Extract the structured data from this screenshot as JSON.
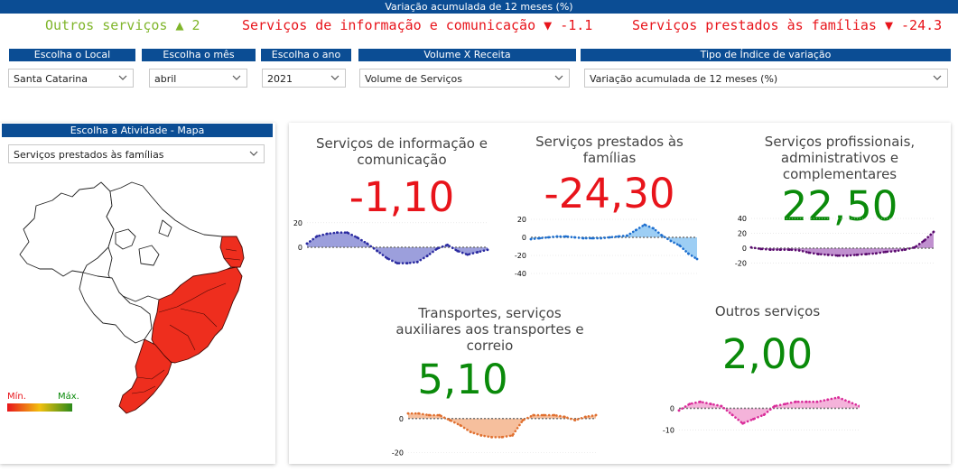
{
  "header": {
    "title": "Variação acumulada de 12 meses (%)",
    "ticker": [
      {
        "text": "Outros serviços ▲ 2",
        "color": "#7fb52a"
      },
      {
        "text": "Serviços de informação e comunicação ▼ -1.1",
        "color": "#e8141b"
      },
      {
        "text": "Serviços prestados às famílias ▼ -24.3",
        "color": "#e8141b"
      }
    ]
  },
  "filters": {
    "local": {
      "label": "Escolha o Local",
      "value": "Santa Catarina"
    },
    "mes": {
      "label": "Escolha o mês",
      "value": "abril"
    },
    "ano": {
      "label": "Escolha o ano",
      "value": "2021"
    },
    "volume": {
      "label": "Volume X Receita",
      "value": "Volume de Serviços"
    },
    "indice": {
      "label": "Tipo de Índice de variação",
      "value": "Variação acumulada de 12 meses (%)"
    }
  },
  "map_panel": {
    "title": "Escolha a Atividade - Mapa",
    "activity": "Serviços prestados às famílias",
    "legend_min": "Mín.",
    "legend_max": "Máx."
  },
  "colors": {
    "header_blue": "#0b4d94",
    "negative": "#e8141b",
    "positive": "#0a8a0a",
    "map_fill": "#ee2e1e"
  },
  "cards": [
    {
      "id": "info",
      "title": [
        "Serviços de informação e",
        "comunicação"
      ],
      "value": "-1,10",
      "value_color": "#e8141b",
      "chart_data": {
        "type": "area",
        "ylim": [
          -25,
          25
        ],
        "yticks": [
          {
            "v": 20,
            "label": "20"
          },
          {
            "v": 0,
            "label": "0"
          }
        ],
        "values": [
          3,
          9,
          11,
          12,
          12,
          8,
          3,
          -3,
          -9,
          -13,
          -13,
          -12,
          -7,
          -1,
          2,
          -3,
          -6,
          -4,
          -2
        ],
        "line_color": "#2a2aa0",
        "fill_color": "#8b8ed6"
      }
    },
    {
      "id": "familias",
      "title": [
        "Serviços prestados às",
        "famílias"
      ],
      "value": "-24,30",
      "value_color": "#e8141b",
      "chart_data": {
        "type": "area",
        "ylim": [
          -45,
          25
        ],
        "yticks": [
          {
            "v": 20,
            "label": "20"
          },
          {
            "v": 0,
            "label": "0"
          },
          {
            "v": -20,
            "label": "-20"
          },
          {
            "v": -40,
            "label": "-40"
          }
        ],
        "values": [
          -2,
          -1,
          0,
          1,
          1,
          0,
          -1,
          -1,
          -1,
          0,
          1,
          2,
          8,
          14,
          10,
          2,
          -4,
          -9,
          -18,
          -24
        ],
        "line_color": "#1e6fcf",
        "fill_color": "#8cc6f2"
      }
    },
    {
      "id": "profissionais",
      "title": [
        "Serviços profissionais,",
        "administrativos e",
        "complementares"
      ],
      "value": "22,50",
      "value_color": "#0a8a0a",
      "chart_data": {
        "type": "area",
        "ylim": [
          -45,
          45
        ],
        "yticks": [
          {
            "v": 40,
            "label": "40"
          },
          {
            "v": 20,
            "label": "20"
          },
          {
            "v": 0,
            "label": "0"
          },
          {
            "v": -20,
            "label": "-20"
          }
        ],
        "values": [
          1,
          -1,
          -2,
          -2,
          -2,
          -3,
          -6,
          -8,
          -9,
          -10,
          -10,
          -9,
          -8,
          -7,
          -5,
          -4,
          -2,
          1,
          10,
          22
        ],
        "line_color": "#5a0a6e",
        "fill_color": "#b57cc7"
      }
    },
    {
      "id": "transportes",
      "title": [
        "Transportes, serviços",
        "auxiliares aos transportes e",
        "correio"
      ],
      "value": "5,10",
      "value_color": "#0a8a0a",
      "chart_data": {
        "type": "area",
        "ylim": [
          -22,
          10
        ],
        "yticks": [
          {
            "v": 0,
            "label": "0"
          },
          {
            "v": -20,
            "label": "-20"
          }
        ],
        "values": [
          3,
          3,
          2,
          2,
          -1,
          -4,
          -8,
          -10,
          -11,
          -11,
          -10,
          -1,
          2,
          2,
          2,
          1,
          -1,
          1,
          2
        ],
        "line_color": "#e07030",
        "fill_color": "#f5b48c"
      }
    },
    {
      "id": "outros",
      "title": [
        "Outros serviços"
      ],
      "value": "2,00",
      "value_color": "#0a8a0a",
      "chart_data": {
        "type": "area",
        "ylim": [
          -14,
          6
        ],
        "yticks": [
          {
            "v": 0,
            "label": "0"
          },
          {
            "v": -10,
            "label": "-10"
          }
        ],
        "values": [
          -1,
          2,
          3,
          2,
          1,
          -3,
          -7,
          -5,
          -3,
          1,
          2,
          3,
          3,
          3,
          4,
          5,
          3,
          1
        ],
        "line_color": "#d92c9a",
        "fill_color": "#f2a6d4"
      }
    }
  ]
}
